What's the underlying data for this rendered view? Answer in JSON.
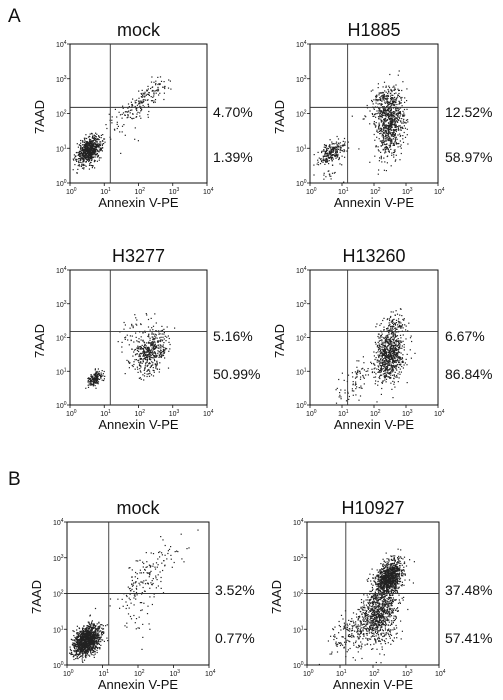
{
  "figure": {
    "panel_labels": [
      "A",
      "B"
    ],
    "xlabel": "Annexin V-PE",
    "ylabel": "7AAD"
  },
  "chart_data": [
    {
      "type": "scatter",
      "panel": "A",
      "title": "mock",
      "xlabel": "Annexin V-PE",
      "ylabel": "7AAD",
      "xscale": "log",
      "yscale": "log",
      "xlim": [
        1,
        10000
      ],
      "ylim": [
        1,
        10000
      ],
      "xticks": [
        "10^0",
        "10^1",
        "10^2",
        "10^3",
        "10^4"
      ],
      "yticks": [
        "10^0",
        "10^1",
        "10^2",
        "10^3",
        "10^4"
      ],
      "gate": {
        "x": 15,
        "y": 150
      },
      "quadrant_labels": {
        "upper_right": "4.70%",
        "lower_right": "1.39%"
      },
      "clusters": [
        {
          "cx": 3.5,
          "cy": 9,
          "sx": 0.18,
          "sy": 0.18,
          "n": 700,
          "slope": 0.4
        },
        {
          "cx": 150,
          "cy": 280,
          "sx": 0.35,
          "sy": 0.18,
          "n": 160,
          "slope": 0.7
        },
        {
          "cx": 40,
          "cy": 60,
          "sx": 0.45,
          "sy": 0.35,
          "n": 40,
          "slope": 0.5
        }
      ]
    },
    {
      "type": "scatter",
      "panel": "A",
      "title": "H1885",
      "xlabel": "Annexin V-PE",
      "ylabel": "7AAD",
      "xscale": "log",
      "yscale": "log",
      "xlim": [
        1,
        10000
      ],
      "ylim": [
        1,
        10000
      ],
      "xticks": [
        "10^0",
        "10^1",
        "10^2",
        "10^3",
        "10^4"
      ],
      "yticks": [
        "10^0",
        "10^1",
        "10^2",
        "10^3",
        "10^4"
      ],
      "gate": {
        "x": 15,
        "y": 150
      },
      "quadrant_labels": {
        "upper_right": "12.52%",
        "lower_right": "58.97%"
      },
      "clusters": [
        {
          "cx": 5,
          "cy": 8,
          "sx": 0.2,
          "sy": 0.15,
          "n": 220,
          "slope": 0.4
        },
        {
          "cx": 300,
          "cy": 50,
          "sx": 0.22,
          "sy": 0.45,
          "n": 700,
          "slope": 0.3
        },
        {
          "cx": 200,
          "cy": 200,
          "sx": 0.3,
          "sy": 0.25,
          "n": 150,
          "slope": 0.3
        },
        {
          "cx": 3,
          "cy": 2,
          "sx": 0.3,
          "sy": 0.3,
          "n": 40,
          "slope": 0.2
        }
      ]
    },
    {
      "type": "scatter",
      "panel": "A",
      "title": "H3277",
      "xlabel": "Annexin V-PE",
      "ylabel": "7AAD",
      "xscale": "log",
      "yscale": "log",
      "xlim": [
        1,
        10000
      ],
      "ylim": [
        1,
        10000
      ],
      "xticks": [
        "10^0",
        "10^1",
        "10^2",
        "10^3",
        "10^4"
      ],
      "yticks": [
        "10^0",
        "10^1",
        "10^2",
        "10^3",
        "10^4"
      ],
      "gate": {
        "x": 15,
        "y": 150
      },
      "quadrant_labels": {
        "upper_right": "5.16%",
        "lower_right": "50.99%"
      },
      "clusters": [
        {
          "cx": 5,
          "cy": 6,
          "sx": 0.1,
          "sy": 0.1,
          "n": 180,
          "slope": 0.4
        },
        {
          "cx": 200,
          "cy": 40,
          "sx": 0.28,
          "sy": 0.32,
          "n": 450,
          "slope": 0.3
        },
        {
          "cx": 80,
          "cy": 150,
          "sx": 0.35,
          "sy": 0.3,
          "n": 40,
          "slope": 0.4
        }
      ]
    },
    {
      "type": "scatter",
      "panel": "A",
      "title": "H13260",
      "xlabel": "Annexin V-PE",
      "ylabel": "7AAD",
      "xscale": "log",
      "yscale": "log",
      "xlim": [
        1,
        10000
      ],
      "ylim": [
        1,
        10000
      ],
      "xticks": [
        "10^0",
        "10^1",
        "10^2",
        "10^3",
        "10^4"
      ],
      "yticks": [
        "10^0",
        "10^1",
        "10^2",
        "10^3",
        "10^4"
      ],
      "gate": {
        "x": 15,
        "y": 150
      },
      "quadrant_labels": {
        "upper_right": "6.67%",
        "lower_right": "86.84%"
      },
      "clusters": [
        {
          "cx": 300,
          "cy": 30,
          "sx": 0.22,
          "sy": 0.4,
          "n": 750,
          "slope": 0.3
        },
        {
          "cx": 30,
          "cy": 6,
          "sx": 0.4,
          "sy": 0.3,
          "n": 90,
          "slope": 0.6
        },
        {
          "cx": 400,
          "cy": 250,
          "sx": 0.2,
          "sy": 0.2,
          "n": 90,
          "slope": 0.3
        }
      ]
    },
    {
      "type": "scatter",
      "panel": "B",
      "title": "mock",
      "xlabel": "Annexin V-PE",
      "ylabel": "7AAD",
      "xscale": "log",
      "yscale": "log",
      "xlim": [
        1,
        10000
      ],
      "ylim": [
        1,
        10000
      ],
      "xticks": [
        "10^0",
        "10^1",
        "10^2",
        "10^3",
        "10^4"
      ],
      "yticks": [
        "10^0",
        "10^1",
        "10^2",
        "10^3",
        "10^4"
      ],
      "gate": {
        "x": 15,
        "y": 100
      },
      "quadrant_labels": {
        "upper_right": "3.52%",
        "lower_right": "0.77%"
      },
      "clusters": [
        {
          "cx": 3.5,
          "cy": 5,
          "sx": 0.2,
          "sy": 0.2,
          "n": 1200,
          "slope": 0.4
        },
        {
          "cx": 200,
          "cy": 400,
          "sx": 0.45,
          "sy": 0.3,
          "n": 150,
          "slope": 0.8
        },
        {
          "cx": 100,
          "cy": 30,
          "sx": 0.2,
          "sy": 0.5,
          "n": 40,
          "slope": 0.2
        }
      ]
    },
    {
      "type": "scatter",
      "panel": "B",
      "title": "H10927",
      "xlabel": "Annexin V-PE",
      "ylabel": "7AAD",
      "xscale": "log",
      "yscale": "log",
      "xlim": [
        1,
        10000
      ],
      "ylim": [
        1,
        10000
      ],
      "xticks": [
        "10^0",
        "10^1",
        "10^2",
        "10^3",
        "10^4"
      ],
      "yticks": [
        "10^0",
        "10^1",
        "10^2",
        "10^3",
        "10^4"
      ],
      "gate": {
        "x": 15,
        "y": 100
      },
      "quadrant_labels": {
        "upper_right": "37.48%",
        "lower_right": "57.41%"
      },
      "clusters": [
        {
          "cx": 300,
          "cy": 300,
          "sx": 0.2,
          "sy": 0.22,
          "n": 900,
          "slope": 0.4
        },
        {
          "cx": 150,
          "cy": 30,
          "sx": 0.3,
          "sy": 0.45,
          "n": 900,
          "slope": 0.5
        },
        {
          "cx": 20,
          "cy": 8,
          "sx": 0.35,
          "sy": 0.3,
          "n": 150,
          "slope": 0.5
        }
      ]
    }
  ]
}
